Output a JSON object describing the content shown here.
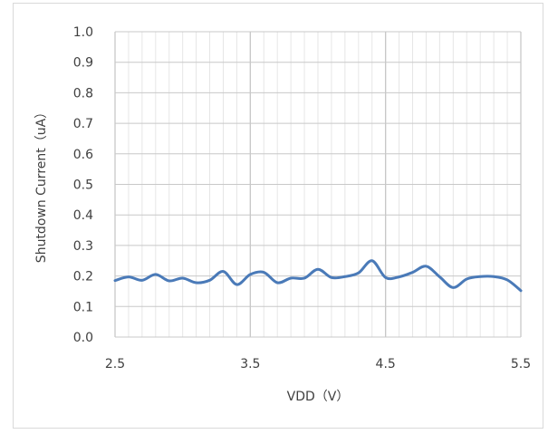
{
  "chart_data": {
    "type": "line",
    "title": "",
    "xlabel": "VDD（V）",
    "ylabel": "Shutdown Current（uA）",
    "xlim": [
      2.5,
      5.5
    ],
    "ylim": [
      0.0,
      1.0
    ],
    "x_ticks": [
      2.5,
      3.5,
      4.5,
      5.5
    ],
    "x_tick_labels": [
      "2.5",
      "3.5",
      "4.5",
      "5.5"
    ],
    "y_ticks": [
      0.0,
      0.1,
      0.2,
      0.3,
      0.4,
      0.5,
      0.6,
      0.7,
      0.8,
      0.9,
      1.0
    ],
    "y_tick_labels": [
      "0.0",
      "0.1",
      "0.2",
      "0.3",
      "0.4",
      "0.5",
      "0.6",
      "0.7",
      "0.8",
      "0.9",
      "1.0"
    ],
    "grid": true,
    "legend": "none",
    "colors": {
      "series": "#4a7ab8",
      "major_grid": "#c8c8c8",
      "minor_grid": "#e6e6e6"
    },
    "series": [
      {
        "values": [
          {
            "x": 2.5,
            "y": 0.185
          },
          {
            "x": 2.6,
            "y": 0.197
          },
          {
            "x": 2.7,
            "y": 0.186
          },
          {
            "x": 2.8,
            "y": 0.205
          },
          {
            "x": 2.9,
            "y": 0.184
          },
          {
            "x": 3.0,
            "y": 0.193
          },
          {
            "x": 3.1,
            "y": 0.178
          },
          {
            "x": 3.2,
            "y": 0.186
          },
          {
            "x": 3.3,
            "y": 0.215
          },
          {
            "x": 3.4,
            "y": 0.172
          },
          {
            "x": 3.5,
            "y": 0.205
          },
          {
            "x": 3.6,
            "y": 0.212
          },
          {
            "x": 3.7,
            "y": 0.178
          },
          {
            "x": 3.8,
            "y": 0.193
          },
          {
            "x": 3.9,
            "y": 0.193
          },
          {
            "x": 4.0,
            "y": 0.222
          },
          {
            "x": 4.1,
            "y": 0.195
          },
          {
            "x": 4.2,
            "y": 0.198
          },
          {
            "x": 4.3,
            "y": 0.21
          },
          {
            "x": 4.4,
            "y": 0.25
          },
          {
            "x": 4.5,
            "y": 0.195
          },
          {
            "x": 4.6,
            "y": 0.197
          },
          {
            "x": 4.7,
            "y": 0.212
          },
          {
            "x": 4.8,
            "y": 0.232
          },
          {
            "x": 4.9,
            "y": 0.197
          },
          {
            "x": 5.0,
            "y": 0.162
          },
          {
            "x": 5.1,
            "y": 0.19
          },
          {
            "x": 5.2,
            "y": 0.198
          },
          {
            "x": 5.3,
            "y": 0.198
          },
          {
            "x": 5.4,
            "y": 0.187
          },
          {
            "x": 5.5,
            "y": 0.152
          }
        ]
      }
    ]
  }
}
